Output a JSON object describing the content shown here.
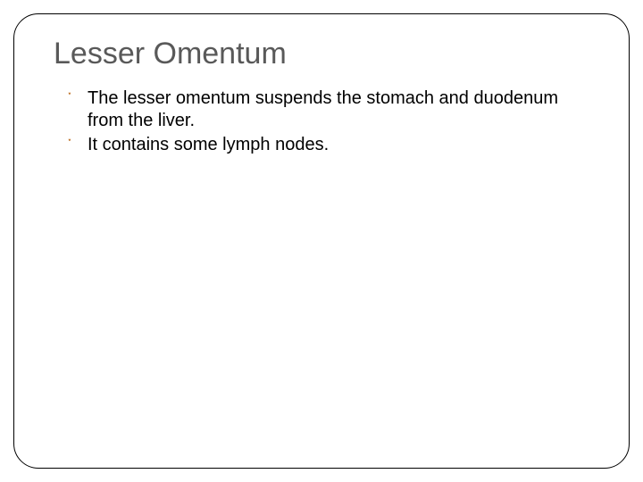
{
  "slide": {
    "title": "Lesser Omentum",
    "title_color": "#595959",
    "title_fontsize": 34,
    "border_color": "#000000",
    "border_radius": 28,
    "background_color": "#ffffff",
    "bullets": [
      {
        "glyph": "་",
        "glyph_color": "#c27a34",
        "text": "The lesser omentum suspends the stomach and duodenum from the liver."
      },
      {
        "glyph": "་",
        "glyph_color": "#c27a34",
        "text": "It contains some lymph nodes."
      }
    ],
    "body_fontsize": 20,
    "body_color": "#000000"
  }
}
